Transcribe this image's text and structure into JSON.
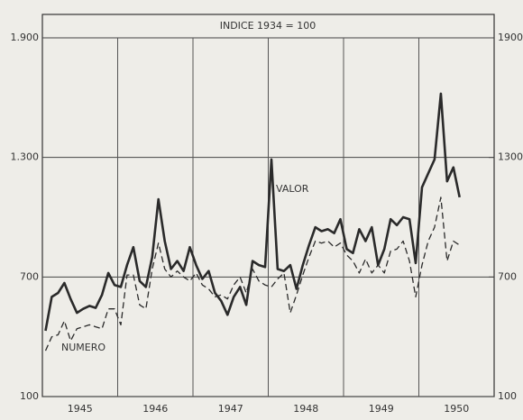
{
  "chart_data": {
    "type": "line",
    "title": "INDICE 1934 = 100",
    "categories": [
      null,
      null,
      null,
      null,
      null,
      "1945",
      null,
      null,
      null,
      null,
      null,
      null,
      null,
      null,
      null,
      null,
      null,
      "1946",
      null,
      null,
      null,
      null,
      null,
      null,
      null,
      null,
      null,
      null,
      null,
      "1947",
      null,
      null,
      null,
      null,
      null,
      null,
      null,
      null,
      null,
      null,
      null,
      "1948",
      null,
      null,
      null,
      null,
      null,
      null,
      null,
      null,
      null,
      null,
      null,
      "1949",
      null,
      null,
      null,
      null,
      null,
      null,
      null,
      null,
      null,
      null,
      null,
      "1950",
      null,
      null,
      null,
      null,
      null,
      null
    ],
    "series": [
      {
        "name": "VALOR",
        "color": "#2a2a2a",
        "style": "solid",
        "values": [
          430,
          600,
          620,
          670,
          590,
          520,
          540,
          555,
          545,
          610,
          720,
          660,
          650,
          760,
          850,
          680,
          650,
          800,
          1090,
          880,
          740,
          780,
          730,
          850,
          760,
          690,
          730,
          620,
          580,
          510,
          600,
          650,
          560,
          780,
          760,
          750,
          1290,
          740,
          730,
          760,
          640,
          760,
          860,
          950,
          930,
          940,
          920,
          990,
          840,
          820,
          940,
          880,
          950,
          760,
          840,
          990,
          960,
          1000,
          990,
          770,
          1150,
          1220,
          1290,
          1620,
          1180,
          1250,
          1100,
          null,
          null,
          null,
          null,
          null
        ]
      },
      {
        "name": "NUMERO",
        "color": "#2a2a2a",
        "style": "dashed",
        "values": [
          330,
          400,
          410,
          480,
          380,
          440,
          450,
          460,
          450,
          440,
          540,
          540,
          460,
          710,
          710,
          560,
          540,
          740,
          870,
          740,
          700,
          730,
          700,
          680,
          720,
          660,
          640,
          600,
          610,
          590,
          660,
          700,
          620,
          740,
          680,
          660,
          650,
          690,
          720,
          520,
          610,
          710,
          800,
          880,
          870,
          880,
          850,
          870,
          810,
          780,
          720,
          790,
          720,
          760,
          720,
          830,
          840,
          880,
          780,
          600,
          760,
          880,
          950,
          1100,
          780,
          880,
          860,
          null,
          null,
          null,
          null,
          null
        ]
      }
    ],
    "ylim": [
      100,
      1900
    ],
    "yticks": [
      {
        "value": 1900,
        "label": "1.900"
      },
      {
        "value": 1300,
        "label": "1.300"
      },
      700,
      100
    ],
    "y2lim": [
      100,
      1900
    ],
    "y2ticks": [
      1900,
      1300,
      700,
      100
    ],
    "grid": true
  }
}
